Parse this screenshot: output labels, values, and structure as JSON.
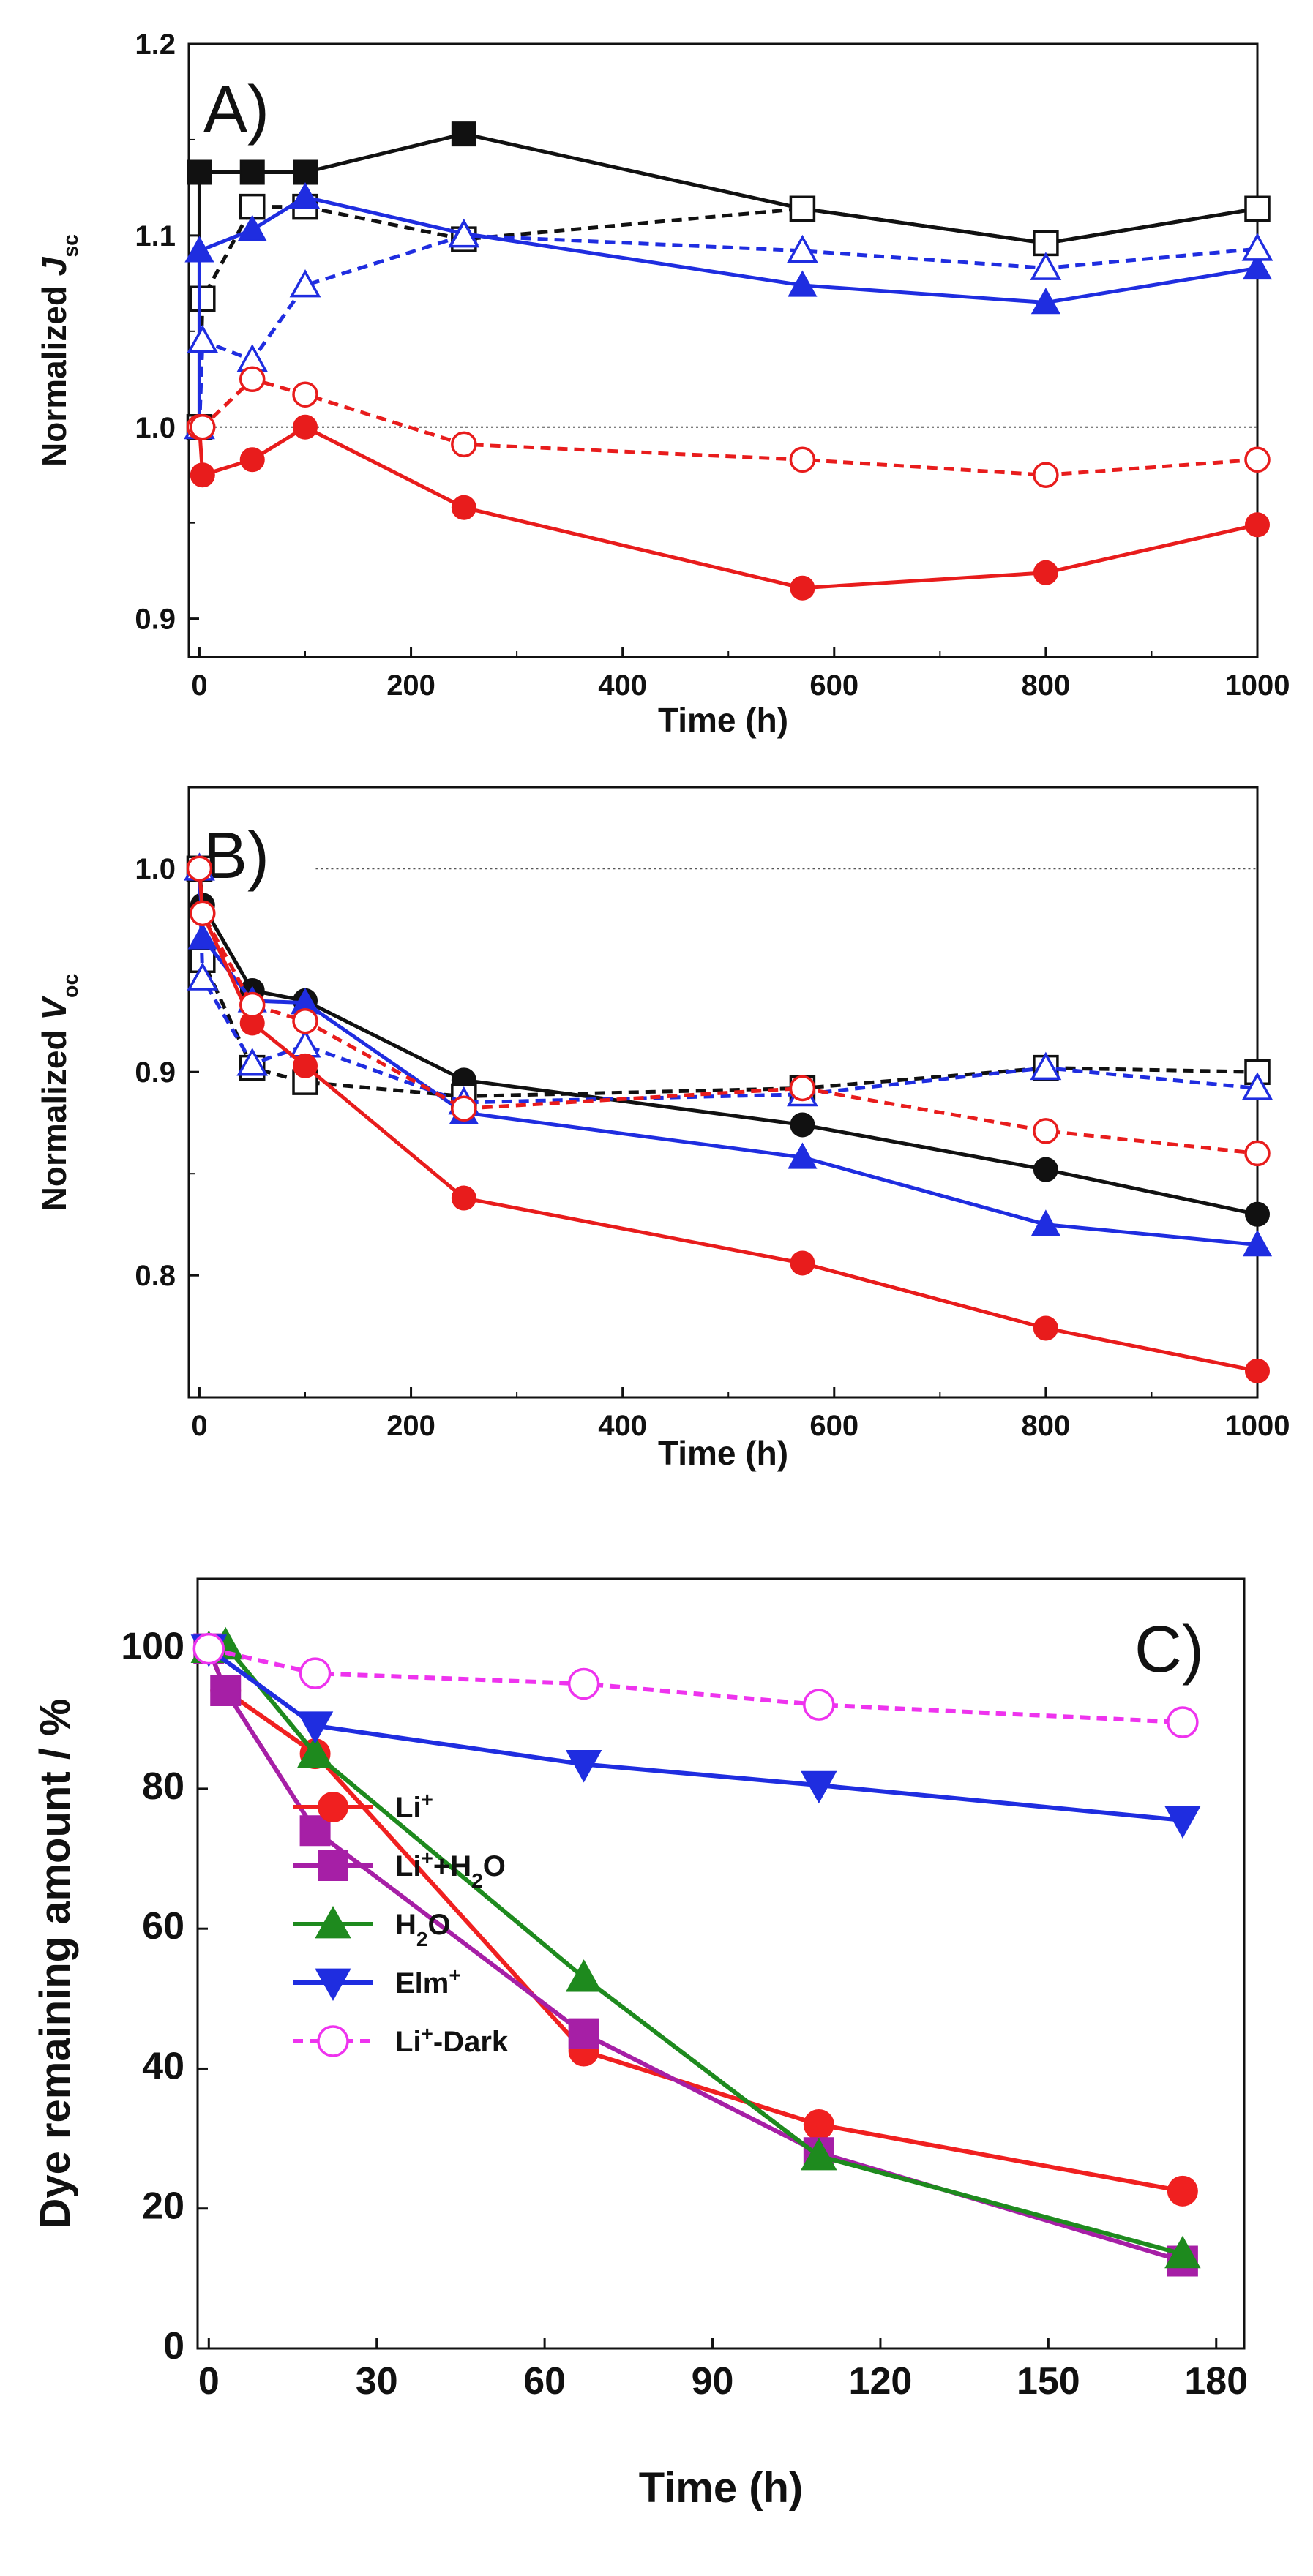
{
  "chart_data": [
    {
      "panel": "A)",
      "type": "line",
      "xlabel": "Time (h)",
      "ylabel": "Normalized J",
      "ylabel_sub": "sc",
      "xlim": [
        -10,
        1000
      ],
      "ylim": [
        0.88,
        1.2
      ],
      "xticks": [
        0,
        200,
        400,
        600,
        800,
        1000
      ],
      "yticks": [
        0.9,
        1.0,
        1.1,
        1.2
      ],
      "ytick_labels": [
        "0.9",
        "1.0",
        "1.1",
        "1.2"
      ],
      "reference_line": 1.0,
      "series": [
        {
          "name": "black-solid",
          "color": "#111111",
          "dash": "solid",
          "marker": "square",
          "filled": true,
          "x": [
            0,
            0,
            50,
            100,
            250,
            570,
            800,
            1000
          ],
          "y": [
            1.0,
            1.133,
            1.133,
            1.133,
            1.153,
            1.114,
            1.096,
            1.114
          ]
        },
        {
          "name": "black-dashed",
          "color": "#111111",
          "dash": "dashed",
          "marker": "square",
          "filled": false,
          "x": [
            0,
            3,
            50,
            100,
            250,
            570,
            800,
            1000
          ],
          "y": [
            1.0,
            1.067,
            1.115,
            1.115,
            1.098,
            1.114,
            1.096,
            1.114
          ]
        },
        {
          "name": "blue-solid",
          "color": "#1f2de0",
          "dash": "solid",
          "marker": "triangle-up",
          "filled": true,
          "x": [
            0,
            0,
            50,
            100,
            250,
            570,
            800,
            1000
          ],
          "y": [
            1.0,
            1.092,
            1.103,
            1.12,
            1.101,
            1.074,
            1.065,
            1.083
          ]
        },
        {
          "name": "blue-dashed",
          "color": "#1f2de0",
          "dash": "dashed",
          "marker": "triangle-up",
          "filled": false,
          "x": [
            0,
            3,
            50,
            100,
            250,
            570,
            800,
            1000
          ],
          "y": [
            1.0,
            1.045,
            1.035,
            1.074,
            1.1,
            1.092,
            1.083,
            1.093
          ]
        },
        {
          "name": "red-solid",
          "color": "#e81c1c",
          "dash": "solid",
          "marker": "circle",
          "filled": true,
          "x": [
            0,
            3,
            50,
            100,
            250,
            570,
            800,
            1000
          ],
          "y": [
            1.0,
            0.975,
            0.983,
            1.0,
            0.958,
            0.916,
            0.924,
            0.949
          ]
        },
        {
          "name": "red-dashed",
          "color": "#e81c1c",
          "dash": "dashed",
          "marker": "circle",
          "filled": false,
          "x": [
            0,
            3,
            50,
            100,
            250,
            570,
            800,
            1000
          ],
          "y": [
            1.0,
            1.0,
            1.025,
            1.017,
            0.991,
            0.983,
            0.975,
            0.983
          ]
        }
      ]
    },
    {
      "panel": "B)",
      "type": "line",
      "xlabel": "Time (h)",
      "ylabel": "Normalized V",
      "ylabel_sub": "oc",
      "xlim": [
        -10,
        1000
      ],
      "ylim": [
        0.74,
        1.04
      ],
      "xticks": [
        0,
        200,
        400,
        600,
        800,
        1000
      ],
      "yticks": [
        0.8,
        0.9,
        1.0
      ],
      "ytick_labels": [
        "0.8",
        "0.9",
        "1.0"
      ],
      "reference_line": 1.0,
      "series": [
        {
          "name": "black-solid",
          "color": "#111111",
          "dash": "solid",
          "marker": "circle",
          "filled": true,
          "x": [
            0,
            3,
            50,
            100,
            250,
            570,
            800,
            1000
          ],
          "y": [
            1.0,
            0.982,
            0.94,
            0.935,
            0.896,
            0.874,
            0.852,
            0.83
          ]
        },
        {
          "name": "black-dashed",
          "color": "#111111",
          "dash": "dashed",
          "marker": "square",
          "filled": false,
          "x": [
            0,
            3,
            50,
            100,
            250,
            570,
            800,
            1000
          ],
          "y": [
            1.0,
            0.955,
            0.902,
            0.895,
            0.888,
            0.892,
            0.902,
            0.9
          ]
        },
        {
          "name": "blue-solid",
          "color": "#1f2de0",
          "dash": "solid",
          "marker": "triangle-up",
          "filled": true,
          "x": [
            0,
            3,
            50,
            100,
            250,
            570,
            800,
            1000
          ],
          "y": [
            1.0,
            0.966,
            0.935,
            0.934,
            0.88,
            0.858,
            0.825,
            0.815
          ]
        },
        {
          "name": "blue-dashed",
          "color": "#1f2de0",
          "dash": "dashed",
          "marker": "triangle-up",
          "filled": false,
          "x": [
            0,
            3,
            50,
            100,
            250,
            570,
            800,
            1000
          ],
          "y": [
            1.0,
            0.946,
            0.904,
            0.913,
            0.885,
            0.889,
            0.902,
            0.892
          ]
        },
        {
          "name": "red-solid",
          "color": "#e81c1c",
          "dash": "solid",
          "marker": "circle",
          "filled": true,
          "x": [
            0,
            3,
            50,
            100,
            250,
            570,
            800,
            1000
          ],
          "y": [
            1.0,
            0.978,
            0.924,
            0.903,
            0.838,
            0.806,
            0.774,
            0.753
          ]
        },
        {
          "name": "red-dashed",
          "color": "#e81c1c",
          "dash": "dashed",
          "marker": "circle",
          "filled": false,
          "x": [
            0,
            3,
            50,
            100,
            250,
            570,
            800,
            1000
          ],
          "y": [
            1.0,
            0.978,
            0.933,
            0.925,
            0.882,
            0.892,
            0.871,
            0.86
          ]
        }
      ]
    },
    {
      "panel": "C)",
      "type": "line",
      "xlabel": "Time (h)",
      "ylabel": "Dye remaining amount / %",
      "xlim": [
        -2,
        185
      ],
      "ylim": [
        0,
        110
      ],
      "xticks": [
        0,
        30,
        60,
        90,
        120,
        150,
        180
      ],
      "yticks": [
        0,
        20,
        40,
        60,
        80,
        100
      ],
      "ytick_labels": [
        "0",
        "20",
        "40",
        "60",
        "80",
        "100"
      ],
      "legend_position": "lower-left",
      "series": [
        {
          "name": "Li+",
          "label_parts": [
            [
              "Li",
              ""
            ],
            [
              "+",
              "sup"
            ]
          ],
          "color": "#f02020",
          "dash": "solid",
          "marker": "circle",
          "filled": true,
          "x": [
            0,
            3,
            19,
            67,
            109,
            174
          ],
          "y": [
            100,
            94,
            85,
            42.5,
            32,
            22.5
          ]
        },
        {
          "name": "Li+ +H2O",
          "label_parts": [
            [
              "Li",
              ""
            ],
            [
              "+",
              "sup"
            ],
            [
              "+H",
              ""
            ],
            [
              "2",
              "sub"
            ],
            [
              "O",
              ""
            ]
          ],
          "color": "#a61fa6",
          "dash": "solid",
          "marker": "square",
          "filled": true,
          "x": [
            0,
            3,
            19,
            67,
            109,
            174
          ],
          "y": [
            100,
            94,
            74,
            45,
            28,
            12.5
          ]
        },
        {
          "name": "H2O",
          "label_parts": [
            [
              "H",
              ""
            ],
            [
              "2",
              "sub"
            ],
            [
              "O",
              ""
            ]
          ],
          "color": "#1e8a1e",
          "dash": "solid",
          "marker": "triangle-up",
          "filled": true,
          "x": [
            0,
            3,
            19,
            67,
            109,
            174
          ],
          "y": [
            100,
            100.5,
            85,
            53,
            27.5,
            13.5
          ]
        },
        {
          "name": "Elm+",
          "label_parts": [
            [
              "Elm",
              ""
            ],
            [
              "+",
              "sup"
            ]
          ],
          "color": "#1f2de0",
          "dash": "solid",
          "marker": "triangle-down",
          "filled": true,
          "x": [
            0,
            19,
            67,
            109,
            174
          ],
          "y": [
            100,
            89,
            83.5,
            80.5,
            75.5
          ]
        },
        {
          "name": "Li+-Dark",
          "label_parts": [
            [
              "Li",
              ""
            ],
            [
              "+",
              "sup"
            ],
            [
              "-Dark",
              ""
            ]
          ],
          "color": "#ee33ee",
          "dash": "dashed",
          "marker": "circle",
          "filled": false,
          "x": [
            0,
            19,
            67,
            109,
            174
          ],
          "y": [
            100,
            96.5,
            95,
            92,
            89.5
          ]
        }
      ]
    }
  ]
}
